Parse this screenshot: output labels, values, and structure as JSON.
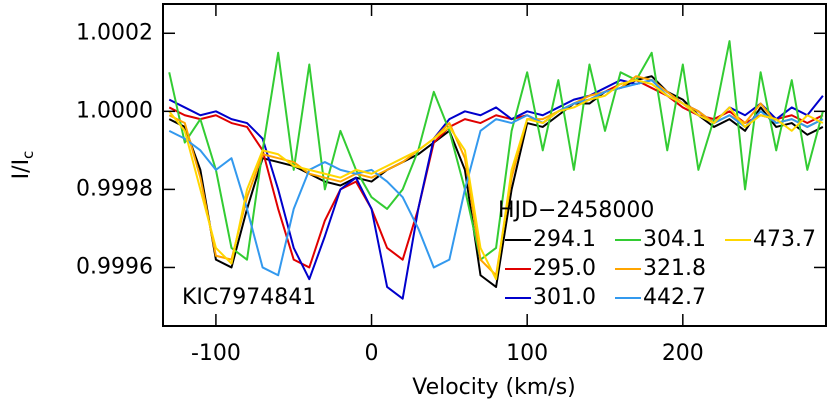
{
  "chart_data": {
    "type": "line",
    "x_label": "Velocity (km/s)",
    "y_label": "I/I",
    "y_label_sub": "c",
    "annotation": "KIC7974841",
    "legend_title": "HJD−2458000",
    "xlim": [
      -134,
      292
    ],
    "ylim": [
      0.99945,
      1.000275
    ],
    "xticks": [
      -100,
      0,
      100,
      200
    ],
    "yticks": [
      0.9996,
      0.9998,
      {
        "value": 1.0,
        "label": "1.0000"
      },
      1.0002
    ],
    "x": [
      -130,
      -120,
      -110,
      -100,
      -90,
      -80,
      -70,
      -60,
      -50,
      -40,
      -30,
      -20,
      -10,
      0,
      10,
      20,
      30,
      40,
      50,
      60,
      70,
      80,
      90,
      100,
      110,
      120,
      130,
      140,
      150,
      160,
      170,
      180,
      190,
      200,
      210,
      220,
      230,
      240,
      250,
      260,
      270,
      280,
      290
    ],
    "series": [
      {
        "name": "294.1",
        "color": "#000000",
        "values": [
          0.99998,
          0.99996,
          0.99985,
          0.99962,
          0.9996,
          0.99975,
          0.99988,
          0.99987,
          0.99986,
          0.99984,
          0.99982,
          0.99981,
          0.99983,
          0.99982,
          0.99985,
          0.99987,
          0.99989,
          0.99992,
          0.99995,
          0.99985,
          0.99958,
          0.99955,
          0.9998,
          0.99997,
          0.99996,
          0.99999,
          1.00002,
          1.00002,
          1.00005,
          1.00006,
          1.00008,
          1.00009,
          1.00005,
          1.00003,
          0.99999,
          0.99996,
          0.99998,
          0.99995,
          1.00001,
          0.99996,
          0.99997,
          0.99994,
          0.99996
        ]
      },
      {
        "name": "295.0",
        "color": "#e00000",
        "values": [
          1.00001,
          0.99999,
          0.99998,
          0.99999,
          0.99997,
          0.99996,
          0.9999,
          0.99975,
          0.99962,
          0.9996,
          0.99972,
          0.9998,
          0.99982,
          0.99975,
          0.99965,
          0.99962,
          0.99975,
          0.99992,
          0.99996,
          0.99998,
          0.99997,
          0.99999,
          0.99998,
          0.99999,
          0.99997,
          1.0,
          1.00002,
          1.00003,
          1.00005,
          1.00007,
          1.00008,
          1.00006,
          1.00004,
          1.00001,
          0.99999,
          0.99998,
          1.0,
          0.99997,
          0.99999,
          0.99998,
          0.99999,
          0.99997,
          0.99999
        ]
      },
      {
        "name": "301.0",
        "color": "#0000cc",
        "values": [
          1.00003,
          1.00001,
          0.99999,
          1.0,
          0.99998,
          0.99997,
          0.99993,
          0.9998,
          0.99965,
          0.99957,
          0.99968,
          0.9998,
          0.99983,
          0.99975,
          0.99955,
          0.99952,
          0.99975,
          0.99993,
          0.99998,
          1.0,
          0.99999,
          1.00001,
          0.99998,
          1.0,
          0.99999,
          1.00001,
          1.00003,
          1.00004,
          1.00006,
          1.00008,
          1.00007,
          1.00008,
          1.00005,
          1.00002,
          1.0,
          0.99997,
          1.00001,
          0.99999,
          1.00002,
          0.99998,
          1.00001,
          0.99999,
          1.00004
        ]
      },
      {
        "name": "304.1",
        "color": "#33cc33",
        "values": [
          1.0001,
          0.99992,
          0.99998,
          0.99985,
          0.99965,
          0.99962,
          0.9999,
          1.00015,
          0.99985,
          1.00012,
          0.9998,
          0.99995,
          0.99985,
          0.99978,
          0.99975,
          0.9998,
          0.9999,
          1.00005,
          0.99995,
          0.9998,
          0.99962,
          0.99965,
          0.99995,
          1.0001,
          0.9999,
          1.00008,
          0.99985,
          1.00012,
          0.99995,
          1.0001,
          1.00008,
          1.00015,
          0.9999,
          1.00012,
          0.99985,
          0.99998,
          1.00018,
          0.9998,
          1.0001,
          0.9999,
          1.00008,
          0.99985,
          1.0
        ]
      },
      {
        "name": "321.8",
        "color": "#ffa500",
        "values": [
          0.99999,
          0.99997,
          0.99983,
          0.99963,
          0.99962,
          0.99978,
          0.99989,
          0.99988,
          0.99987,
          0.99984,
          0.99983,
          0.99982,
          0.99984,
          0.99983,
          0.99985,
          0.99987,
          0.9999,
          0.99993,
          0.99997,
          0.99988,
          0.99962,
          0.99958,
          0.99983,
          0.99998,
          0.99998,
          1.0,
          1.00002,
          1.00004,
          1.00005,
          1.00006,
          1.00009,
          1.00008,
          1.00005,
          1.00002,
          1.0,
          0.99997,
          0.99999,
          0.99997,
          1.00002,
          0.99997,
          0.99998,
          0.99996,
          0.99998
        ]
      },
      {
        "name": "442.7",
        "color": "#3399ee",
        "values": [
          0.99995,
          0.99993,
          0.9999,
          0.99985,
          0.99988,
          0.99975,
          0.9996,
          0.99958,
          0.99975,
          0.99985,
          0.99987,
          0.99985,
          0.99984,
          0.99985,
          0.99982,
          0.99978,
          0.9997,
          0.9996,
          0.99962,
          0.9998,
          0.99995,
          0.99998,
          0.99997,
          0.99999,
          0.99997,
          1.0,
          1.00002,
          1.00003,
          1.00005,
          1.00006,
          1.00007,
          1.00008,
          1.00004,
          1.00002,
          0.99999,
          0.99997,
          0.99999,
          0.99996,
          1.0,
          0.99997,
          0.99998,
          0.99996,
          0.99998
        ]
      },
      {
        "name": "473.7",
        "color": "#ffd700",
        "values": [
          1.0,
          0.99995,
          0.9998,
          0.99965,
          0.99961,
          0.9998,
          0.9999,
          0.99989,
          0.99986,
          0.99985,
          0.99984,
          0.99983,
          0.99985,
          0.99984,
          0.99986,
          0.99988,
          0.9999,
          0.99993,
          0.99996,
          0.9999,
          0.99965,
          0.99957,
          0.99985,
          0.99998,
          0.99997,
          1.0,
          1.00001,
          1.00003,
          1.00004,
          1.00007,
          1.00008,
          1.00007,
          1.00004,
          1.00002,
          0.99999,
          0.99997,
          1.00001,
          0.99996,
          0.99999,
          0.99998,
          0.99995,
          0.99999,
          0.99997
        ]
      }
    ]
  }
}
